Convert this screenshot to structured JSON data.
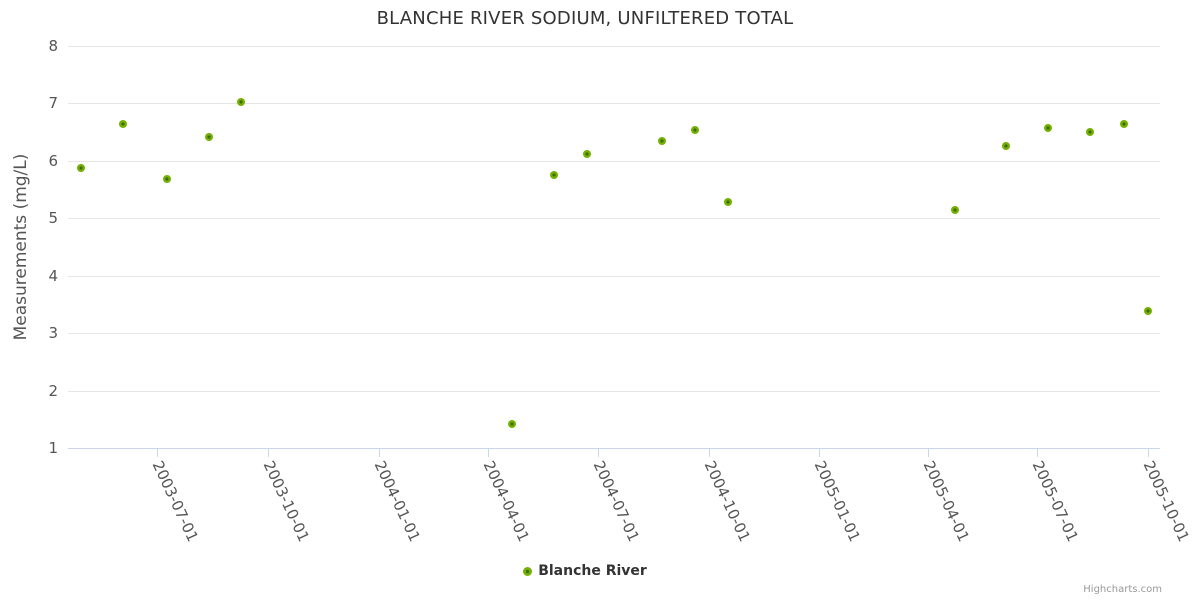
{
  "title": "BLANCHE RIVER SODIUM, UNFILTERED TOTAL",
  "credit": "Highcharts.com",
  "colors": {
    "title_text": "#333333",
    "tick_label_text": "#555555",
    "axis_title_text": "#555555",
    "legend_text": "#333333",
    "credit_text": "#999999",
    "grid_line": "#e6e6e6",
    "axis_line": "#ccd6eb",
    "marker_edge": "#8ac421",
    "marker_body": "#74b002",
    "marker_core": "#3d6c08",
    "background": "#ffffff"
  },
  "chart_data": {
    "type": "scatter",
    "title": "BLANCHE RIVER SODIUM, UNFILTERED TOTAL",
    "xlabel": "",
    "ylabel": "Measurements (mg/L)",
    "ylim": [
      1,
      8
    ],
    "yticks": [
      1,
      2,
      3,
      4,
      5,
      6,
      7,
      8
    ],
    "xlim": [
      "2003-04-18",
      "2005-10-11"
    ],
    "xticks": [
      "2003-07-01",
      "2003-10-01",
      "2004-01-01",
      "2004-04-01",
      "2004-07-01",
      "2004-10-01",
      "2005-01-01",
      "2005-04-01",
      "2005-07-01",
      "2005-10-01"
    ],
    "xtick_label_rotation_deg": 65,
    "grid": "horizontal",
    "legend_position": "bottom-center",
    "series": [
      {
        "name": "Blanche River",
        "points": [
          [
            "2003-04-29",
            5.87
          ],
          [
            "2003-06-03",
            6.65
          ],
          [
            "2003-07-09",
            5.68
          ],
          [
            "2003-08-13",
            6.42
          ],
          [
            "2003-09-09",
            7.02
          ],
          [
            "2004-04-21",
            1.41
          ],
          [
            "2004-05-26",
            5.76
          ],
          [
            "2004-06-22",
            6.12
          ],
          [
            "2004-08-23",
            6.34
          ],
          [
            "2004-09-20",
            6.53
          ],
          [
            "2004-10-17",
            5.28
          ],
          [
            "2005-04-24",
            5.14
          ],
          [
            "2005-06-05",
            6.26
          ],
          [
            "2005-07-10",
            6.57
          ],
          [
            "2005-08-14",
            6.5
          ],
          [
            "2005-09-11",
            6.64
          ],
          [
            "2005-10-01",
            3.39
          ]
        ]
      }
    ]
  }
}
